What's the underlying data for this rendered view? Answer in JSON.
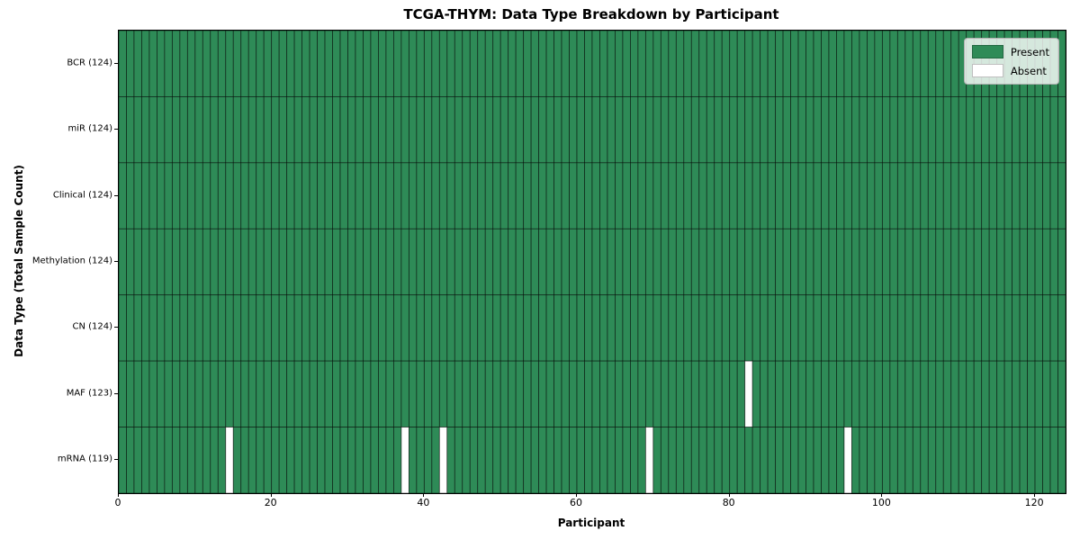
{
  "title": "TCGA-THYM: Data Type Breakdown by Participant",
  "colors": {
    "present": "#2e8b57",
    "absent": "#ffffff",
    "cell_border": "rgba(0,0,0,0.6)",
    "axis": "#000000",
    "legend_background": "rgba(255,255,255,0.8)"
  },
  "chart_data": {
    "type": "heatmap",
    "title": "TCGA-THYM: Data Type Breakdown by Participant",
    "xlabel": "Participant",
    "ylabel": "Data Type (Total Sample Count)",
    "x_ticks": [
      0,
      20,
      40,
      60,
      80,
      100,
      120
    ],
    "x_range": [
      0,
      124
    ],
    "n_participants": 124,
    "grid": true,
    "legend_position": "upper right",
    "rows": [
      {
        "label": "BCR (124)",
        "data_type": "BCR",
        "total_sample_count": 124,
        "absent_participants": []
      },
      {
        "label": "miR (124)",
        "data_type": "miR",
        "total_sample_count": 124,
        "absent_participants": []
      },
      {
        "label": "Clinical (124)",
        "data_type": "Clinical",
        "total_sample_count": 124,
        "absent_participants": []
      },
      {
        "label": "Methylation (124)",
        "data_type": "Methylation",
        "total_sample_count": 124,
        "absent_participants": []
      },
      {
        "label": "CN (124)",
        "data_type": "CN",
        "total_sample_count": 124,
        "absent_participants": []
      },
      {
        "label": "MAF (123)",
        "data_type": "MAF",
        "total_sample_count": 123,
        "absent_participants": [
          82
        ]
      },
      {
        "label": "mRNA (119)",
        "data_type": "mRNA",
        "total_sample_count": 119,
        "absent_participants": [
          14,
          37,
          42,
          69,
          95
        ]
      }
    ],
    "legend": [
      {
        "label": "Present",
        "color": "#2e8b57"
      },
      {
        "label": "Absent",
        "color": "#ffffff"
      }
    ]
  }
}
